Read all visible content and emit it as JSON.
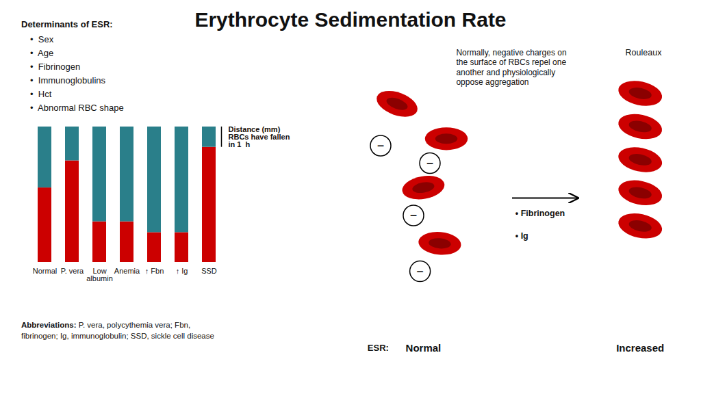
{
  "chart_data": {
    "type": "bar",
    "title": "Erythrocyte Sedimentation Rate",
    "categories": [
      "Normal",
      "P. vera",
      "Low\nalbumin",
      "Anemia",
      "↑ Fbn",
      "↑ Ig",
      "SSD"
    ],
    "stacked": true,
    "series": [
      {
        "color": "#cc0000",
        "values": [
          5.5,
          7.5,
          3.0,
          3.0,
          2.2,
          2.2,
          8.5
        ]
      },
      {
        "color": "#2a7f8a",
        "values": [
          4.5,
          2.5,
          7.0,
          7.0,
          7.8,
          7.8,
          1.5
        ]
      }
    ],
    "ylim": [
      0,
      10
    ],
    "tick_labels": "x",
    "grid": false,
    "annotations": {
      "determinants": {
        "title": "Determinants of ESR:",
        "items": [
          "•  Sex",
          "•  Age",
          "•  Fibrinogen",
          "•  Immunoglobulins",
          "•  Hct",
          "•  Abnormal RBC shape"
        ]
      },
      "distance_label": "Distance (mm)\nRBCs have fallen\nin 1  h",
      "abbreviations": {
        "bold": "Abbreviations:",
        "rest": " P. vera, polycythemia vera; Fbn,\nfibrinogen; Ig, immunoglobulin; SSD, sickle cell disease"
      },
      "illustration": {
        "note": "Normally, negative charges on\nthe surface of RBCs repel one\nanother and physiologically\noppose aggregation",
        "charge": "−",
        "causes": [
          "• Fibrinogen",
          "• Ig"
        ],
        "rouleaux_label": "Rouleaux",
        "esr_label": "ESR:",
        "normal_label": "Normal",
        "increased_label": "Increased",
        "colors": [
          "#cc0000",
          "#8b0000"
        ]
      }
    }
  }
}
